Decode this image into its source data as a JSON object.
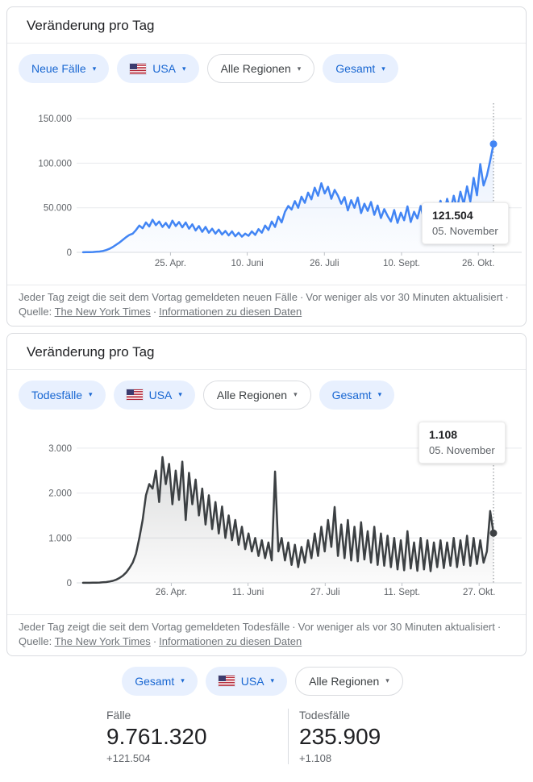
{
  "icons": {
    "dropdown_arrow": "▾"
  },
  "theme": {
    "grid_color": "#e8eaed",
    "axis_line_color": "#dadce0",
    "tick_color": "#bdc1c6",
    "crosshair_color": "#80868b",
    "chip_blue_bg": "#e8f0fe",
    "chip_blue_text": "#1967d2",
    "cases_line": "#4285f4",
    "deaths_line": "#3c4043"
  },
  "shared": {
    "sep": "·",
    "updated": "Vor weniger als vor 30 Minuten aktualisiert",
    "source_label": "Quelle:",
    "source_link": "The New York Times",
    "info_link": "Informationen zu diesen Daten"
  },
  "card1": {
    "title": "Veränderung pro Tag",
    "chips": [
      {
        "id": "metric-new-cases",
        "label": "Neue Fälle",
        "style": "filled",
        "flag": false
      },
      {
        "id": "country-usa",
        "label": "USA",
        "style": "filled",
        "flag": true
      },
      {
        "id": "region-all",
        "label": "Alle Regionen",
        "style": "outline",
        "flag": false
      },
      {
        "id": "granularity-total",
        "label": "Gesamt",
        "style": "filled",
        "flag": false
      }
    ],
    "tooltip": {
      "value": "121.504",
      "date": "05. November"
    },
    "footer_description": "Jeder Tag zeigt die seit dem Vortag gemeldeten neuen Fälle"
  },
  "card2": {
    "title": "Veränderung pro Tag",
    "chips": [
      {
        "id": "metric-deaths",
        "label": "Todesfälle",
        "style": "filled",
        "flag": false
      },
      {
        "id": "country-usa",
        "label": "USA",
        "style": "filled",
        "flag": true
      },
      {
        "id": "region-all",
        "label": "Alle Regionen",
        "style": "outline",
        "flag": false
      },
      {
        "id": "granularity-total",
        "label": "Gesamt",
        "style": "filled",
        "flag": false
      }
    ],
    "tooltip": {
      "value": "1.108",
      "date": "05. November"
    },
    "footer_description": "Jeder Tag zeigt die seit dem Vortag gemeldeten Todesfälle"
  },
  "bottom": {
    "chips": [
      {
        "id": "granularity-total",
        "label": "Gesamt",
        "style": "filled",
        "flag": false
      },
      {
        "id": "country-usa",
        "label": "USA",
        "style": "filled",
        "flag": true
      },
      {
        "id": "region-all",
        "label": "Alle Regionen",
        "style": "outline",
        "flag": false
      }
    ],
    "stats": [
      {
        "id": "cases",
        "label": "Fälle",
        "value": "9.761.320",
        "delta": "+121.504"
      },
      {
        "id": "deaths",
        "label": "Todesfälle",
        "value": "235.909",
        "delta": "+1.108"
      }
    ]
  },
  "chart_data": [
    {
      "type": "line",
      "title": "Veränderung pro Tag",
      "metric": "Neue Fälle",
      "country": "USA",
      "region": "Alle Regionen",
      "granularity": "Gesamt",
      "grid": true,
      "legend": "none",
      "line_color": "#4285f4",
      "area_color_top": "rgba(66,133,244,0.12)",
      "area_color_bottom": "rgba(66,133,244,0.02)",
      "ylim": [
        0,
        165000
      ],
      "y_tick_step": 50000,
      "y_ticks": [
        "0",
        "50.000",
        "100.000",
        "150.000"
      ],
      "x_ticks": [
        {
          "label": "25. Apr.",
          "f": 0.213
        },
        {
          "label": "10. Juni",
          "f": 0.4
        },
        {
          "label": "26. Juli",
          "f": 0.588
        },
        {
          "label": "10. Sept.",
          "f": 0.776
        },
        {
          "label": "26. Okt.",
          "f": 0.963
        }
      ],
      "highlight": {
        "value": 121504,
        "value_label": "121.504",
        "date_label": "05. November"
      },
      "values": [
        100,
        150,
        250,
        400,
        600,
        900,
        1500,
        2500,
        4000,
        6000,
        8500,
        11000,
        14000,
        17000,
        19500,
        21000,
        25000,
        30000,
        27000,
        33500,
        29000,
        36500,
        30500,
        34500,
        28500,
        33000,
        27500,
        35500,
        29500,
        34000,
        28000,
        33500,
        26500,
        31500,
        24500,
        29500,
        23000,
        28500,
        22000,
        26500,
        21000,
        25500,
        20000,
        24000,
        19000,
        23500,
        18000,
        22000,
        17500,
        21000,
        18500,
        23500,
        19500,
        26000,
        22000,
        30000,
        25000,
        34500,
        28500,
        40000,
        33500,
        45500,
        52000,
        48000,
        57500,
        50000,
        62500,
        55500,
        67000,
        59500,
        72500,
        63500,
        77500,
        66000,
        73500,
        60000,
        70000,
        63500,
        54500,
        62000,
        47000,
        58500,
        50000,
        61500,
        44000,
        54500,
        46500,
        56500,
        42000,
        52500,
        38500,
        48500,
        41000,
        34500,
        47500,
        33000,
        44500,
        36000,
        51500,
        34000,
        45500,
        38000,
        52000,
        36500,
        48000,
        39500,
        55000,
        43500,
        58000,
        42000,
        60000,
        47000,
        63500,
        49000,
        68000,
        54000,
        74000,
        57000,
        83500,
        64000,
        99000,
        75000,
        86000,
        103000,
        121504
      ]
    },
    {
      "type": "line",
      "title": "Veränderung pro Tag",
      "metric": "Todesfälle",
      "country": "USA",
      "region": "Alle Regionen",
      "granularity": "Gesamt",
      "grid": true,
      "legend": "none",
      "line_color": "#3c4043",
      "area_color_top": "rgba(60,64,67,0.18)",
      "area_color_bottom": "rgba(60,64,67,0.02)",
      "ylim": [
        0,
        3100
      ],
      "y_tick_step": 1000,
      "y_ticks": [
        "0",
        "1.000",
        "2.000",
        "3.000"
      ],
      "x_ticks": [
        {
          "label": "26. Apr.",
          "f": 0.215
        },
        {
          "label": "11. Juni",
          "f": 0.402
        },
        {
          "label": "27. Juli",
          "f": 0.59
        },
        {
          "label": "11. Sept.",
          "f": 0.777
        },
        {
          "label": "27. Okt.",
          "f": 0.965
        }
      ],
      "highlight": {
        "value": 1108,
        "value_label": "1.108",
        "date_label": "05. November"
      },
      "values": [
        1,
        1,
        2,
        3,
        5,
        8,
        12,
        18,
        30,
        45,
        70,
        110,
        160,
        230,
        330,
        450,
        650,
        1000,
        1400,
        1950,
        2200,
        2100,
        2500,
        1800,
        2800,
        2200,
        2650,
        1750,
        2500,
        1850,
        2700,
        1400,
        2450,
        1750,
        2300,
        1500,
        2100,
        1300,
        1950,
        1200,
        1800,
        1100,
        1700,
        1000,
        1500,
        950,
        1400,
        850,
        1250,
        750,
        1100,
        700,
        1000,
        600,
        950,
        550,
        900,
        500,
        2480,
        700,
        1000,
        500,
        900,
        400,
        850,
        350,
        800,
        450,
        950,
        550,
        1100,
        600,
        1250,
        700,
        1400,
        800,
        1690,
        600,
        1300,
        550,
        1400,
        500,
        1250,
        480,
        1350,
        520,
        1150,
        450,
        1250,
        400,
        1100,
        380,
        1050,
        350,
        1000,
        300,
        950,
        280,
        1150,
        320,
        900,
        270,
        1000,
        300,
        950,
        260,
        900,
        350,
        950,
        330,
        900,
        380,
        1000,
        350,
        950,
        400,
        1050,
        380,
        1000,
        420,
        950,
        450,
        700,
        1600,
        1108
      ]
    }
  ]
}
